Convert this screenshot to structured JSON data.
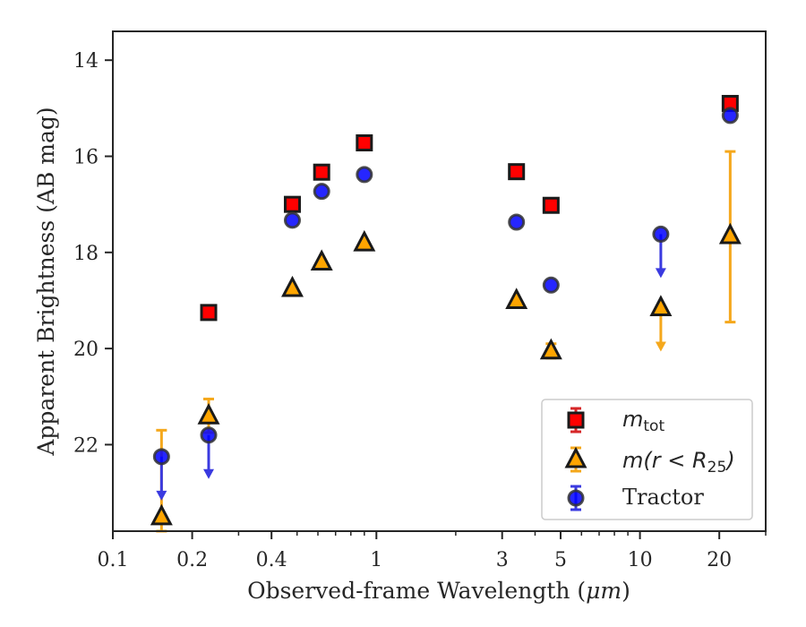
{
  "chart_data": {
    "type": "scatter",
    "xlabel_prefix": "Observed-frame Wavelength (",
    "xlabel_unit": "μm",
    "xlabel_suffix": ")",
    "ylabel": "Apparent Brightness (AB mag)",
    "x_scale": "log",
    "xlim": [
      0.1,
      30
    ],
    "ylim": [
      23.8,
      13.4
    ],
    "y_inverted": true,
    "grid": false,
    "legend_position": "bottom-right",
    "x_ticks": [
      {
        "value": 0.1,
        "label": "0.1"
      },
      {
        "value": 0.2,
        "label": "0.2"
      },
      {
        "value": 0.4,
        "label": "0.4"
      },
      {
        "value": 1,
        "label": "1"
      },
      {
        "value": 3,
        "label": "3"
      },
      {
        "value": 5,
        "label": "5"
      },
      {
        "value": 10,
        "label": "10"
      },
      {
        "value": 20,
        "label": "20"
      }
    ],
    "y_ticks": [
      {
        "value": 14,
        "label": "14"
      },
      {
        "value": 16,
        "label": "16"
      },
      {
        "value": 18,
        "label": "18"
      },
      {
        "value": 20,
        "label": "20"
      },
      {
        "value": 22,
        "label": "22"
      }
    ],
    "series": [
      {
        "name": "m_tot",
        "legend_main": "m",
        "legend_sub": "tot",
        "marker": "square",
        "color": "#ff0000",
        "errcolor": "#d62728",
        "points": [
          {
            "x": 0.231,
            "y": 19.25
          },
          {
            "x": 0.48,
            "y": 17.0
          },
          {
            "x": 0.62,
            "y": 16.33
          },
          {
            "x": 0.9,
            "y": 15.72
          },
          {
            "x": 3.4,
            "y": 16.32
          },
          {
            "x": 4.6,
            "y": 17.02
          },
          {
            "x": 22,
            "y": 14.9
          }
        ]
      },
      {
        "name": "m(r < R25)",
        "legend_main": "m",
        "legend_mid": "(r < R",
        "legend_sub": "25",
        "legend_end": ")",
        "marker": "triangle",
        "color": "#ffa500",
        "errcolor": "#f5a81c",
        "points": [
          {
            "x": 0.153,
            "y": 23.5,
            "err_up": 1.8,
            "err_down": 0.3
          },
          {
            "x": 0.231,
            "y": 21.4,
            "err_up": 0.35,
            "err_down": 0.35
          },
          {
            "x": 0.48,
            "y": 18.75
          },
          {
            "x": 0.62,
            "y": 18.2
          },
          {
            "x": 0.9,
            "y": 17.8
          },
          {
            "x": 3.4,
            "y": 19.0
          },
          {
            "x": 4.6,
            "y": 20.05,
            "err_up": 0.15,
            "err_down": 0.15
          },
          {
            "x": 12,
            "y": 19.15,
            "upper_limit": true
          },
          {
            "x": 22,
            "y": 17.65,
            "err_up": 1.75,
            "err_down": 1.8
          }
        ]
      },
      {
        "name": "Tractor",
        "legend_main": "Tractor",
        "marker": "circle",
        "color": "#0000ff",
        "errcolor": "#3a3ae0",
        "points": [
          {
            "x": 0.153,
            "y": 22.25,
            "upper_limit": true
          },
          {
            "x": 0.231,
            "y": 21.8,
            "upper_limit": true
          },
          {
            "x": 0.48,
            "y": 17.33
          },
          {
            "x": 0.62,
            "y": 16.73
          },
          {
            "x": 0.9,
            "y": 16.38
          },
          {
            "x": 3.4,
            "y": 17.37
          },
          {
            "x": 4.6,
            "y": 18.68
          },
          {
            "x": 12,
            "y": 17.62,
            "upper_limit": true
          },
          {
            "x": 22,
            "y": 15.15
          }
        ]
      }
    ]
  }
}
